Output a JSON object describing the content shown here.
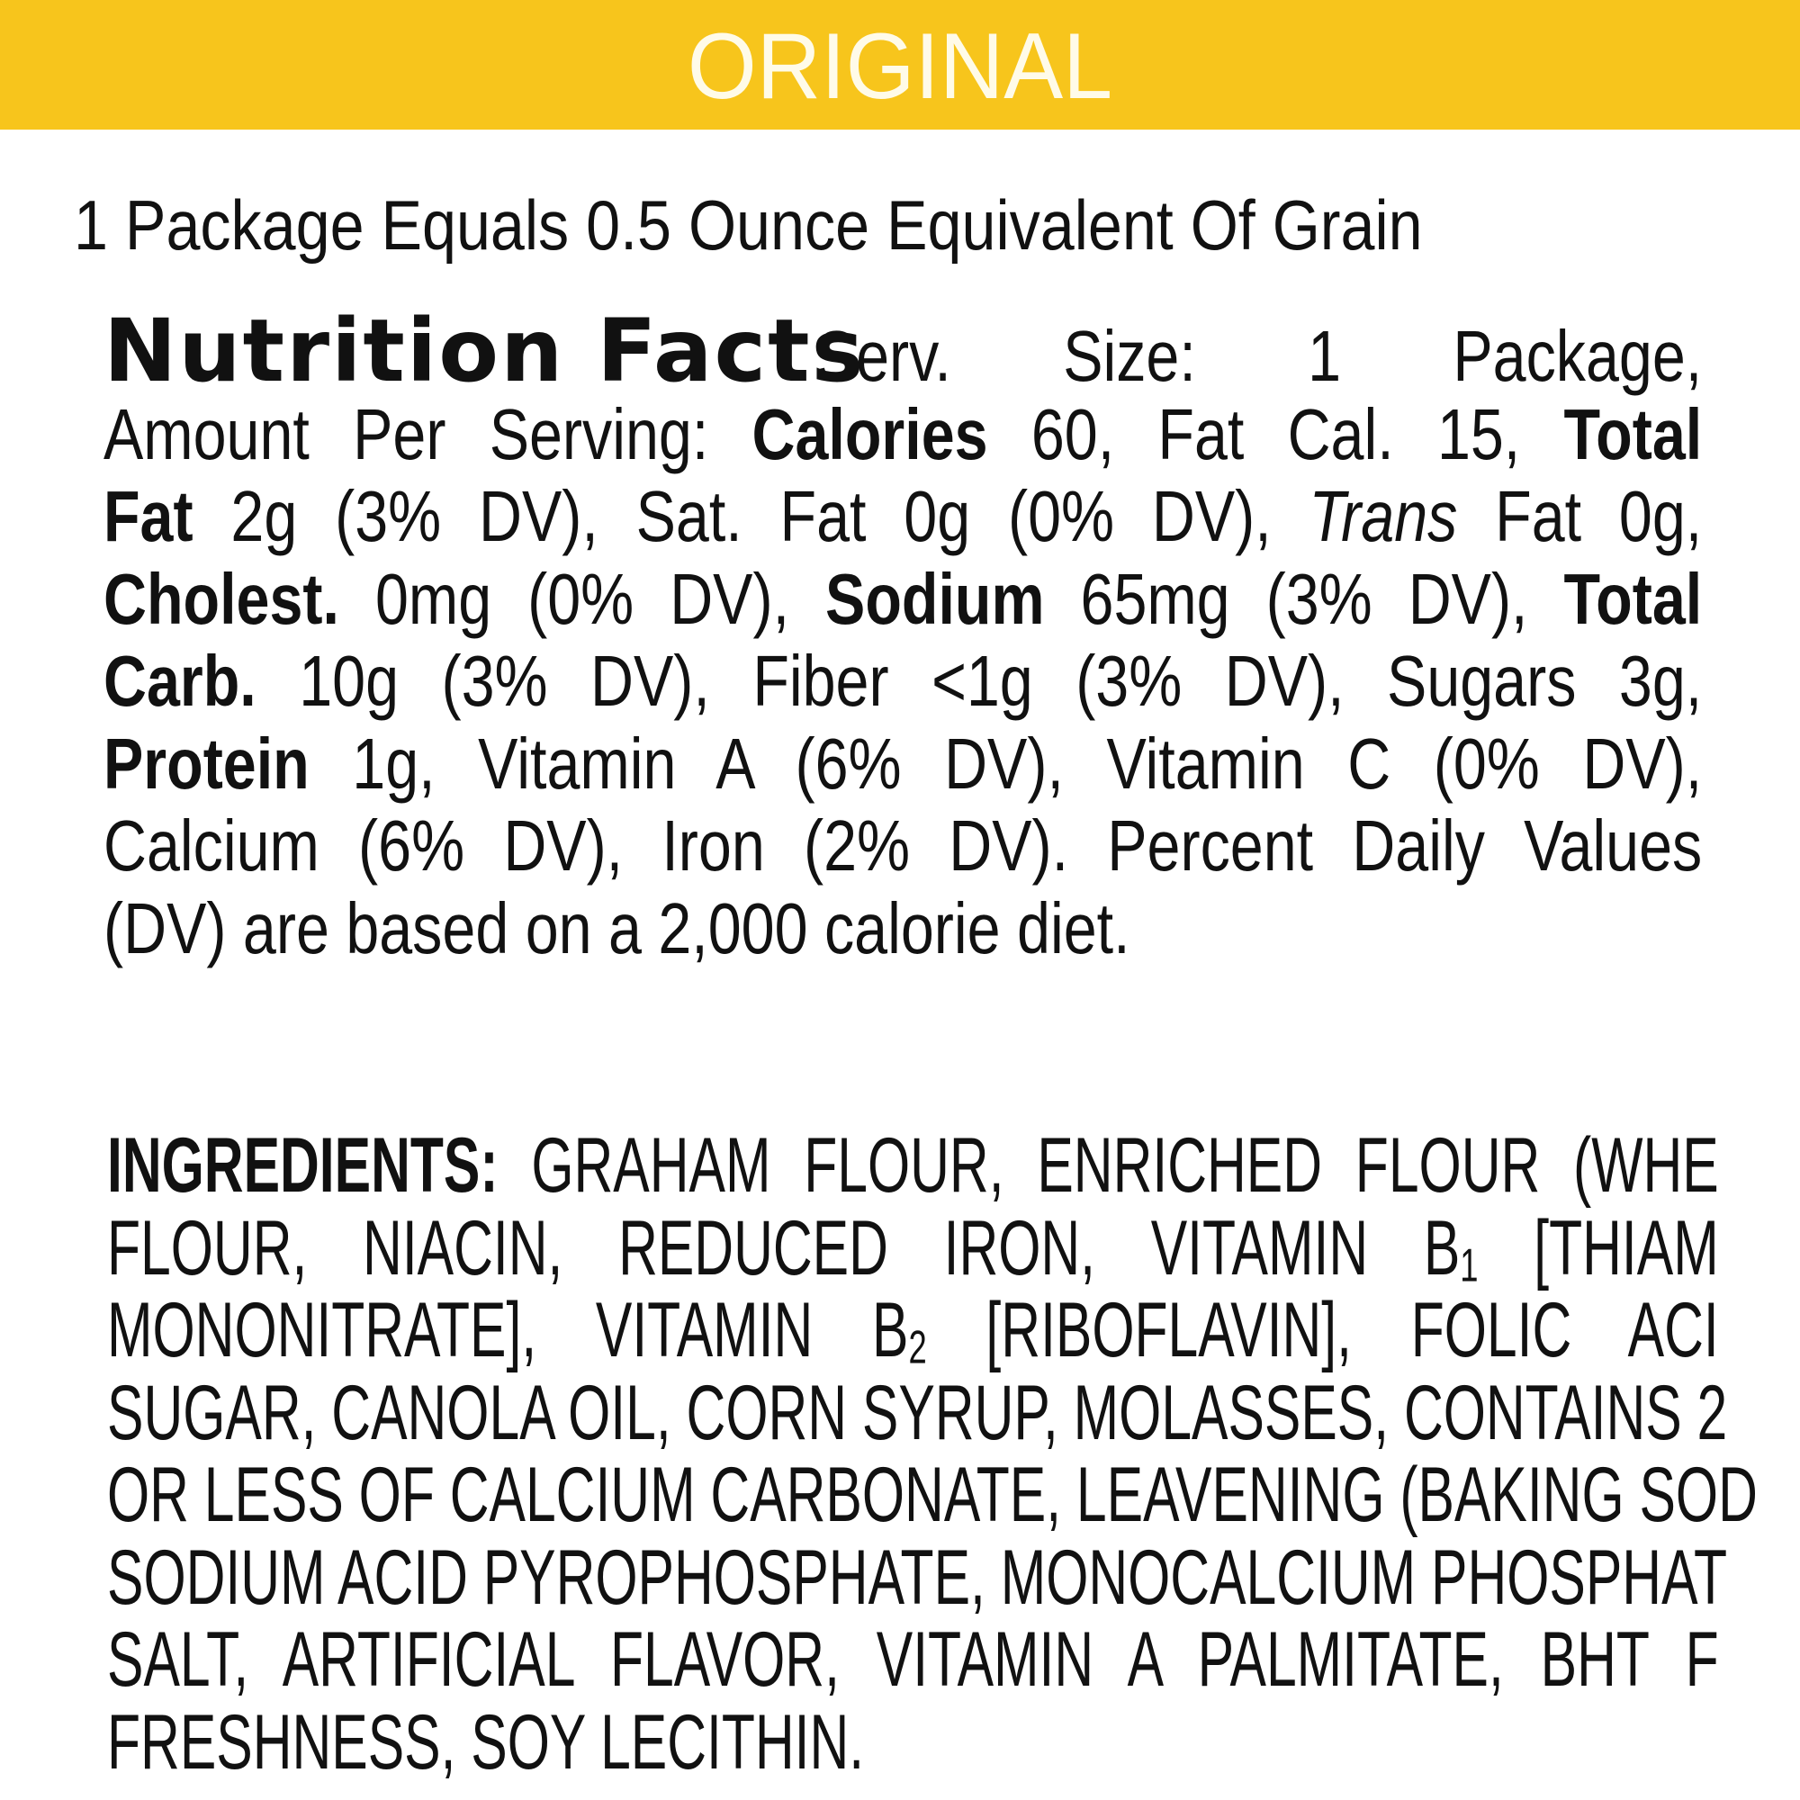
{
  "banner": {
    "title": "ORIGINAL",
    "color": "#f7c51c"
  },
  "subtitle": "1 Package Equals 0.5 Ounce Equivalent Of Grain",
  "nutrition": {
    "heading": "Nutrition Facts",
    "serving_size": "Serv. Size: 1 Package,",
    "l2a": "Amount Per Serving: ",
    "l2b": "Calories",
    "l2c": " 60, Fat Cal. 15, ",
    "l2d": "Total",
    "l3a": "Fat",
    "l3b": " 2g (3% DV), Sat. Fat 0g (0% DV), ",
    "l3c": "Trans",
    "l3d": " Fat 0g,",
    "l4a": "Cholest.",
    "l4b": " 0mg (0% DV), ",
    "l4c": "Sodium",
    "l4d": " 65mg (3% DV), ",
    "l4e": "Total",
    "l5a": "Carb.",
    "l5b": " 10g (3% DV), Fiber <1g (3% DV), Sugars 3g,",
    "l6a": "Protein",
    "l6b": " 1g, Vitamin A (6% DV), Vitamin C (0% DV),",
    "l7": "Calcium (6% DV), Iron (2% DV). Percent Daily Values",
    "l8": "(DV) are based on a 2,000 calorie diet."
  },
  "ingredients": {
    "label": "INGREDIENTS:",
    "l1": " GRAHAM FLOUR, ENRICHED FLOUR (WHE",
    "l2a": "FLOUR, NIACIN, REDUCED IRON, VITAMIN B",
    "l2sub": "1",
    "l2b": " [THIAM",
    "l3a": "MONONITRATE], VITAMIN B",
    "l3sub": "2",
    "l3b": " [RIBOFLAVIN], FOLIC ACI",
    "l4": "SUGAR, CANOLA OIL, CORN SYRUP, MOLASSES, CONTAINS 2",
    "l5": "OR LESS OF CALCIUM CARBONATE, LEAVENING (BAKING SOD",
    "l6": "SODIUM ACID PYROPHOSPHATE, MONOCALCIUM PHOSPHAT",
    "l7": "SALT, ARTIFICIAL FLAVOR, VITAMIN A PALMITATE, BHT F",
    "l8": "FRESHNESS, SOY LECITHIN."
  }
}
